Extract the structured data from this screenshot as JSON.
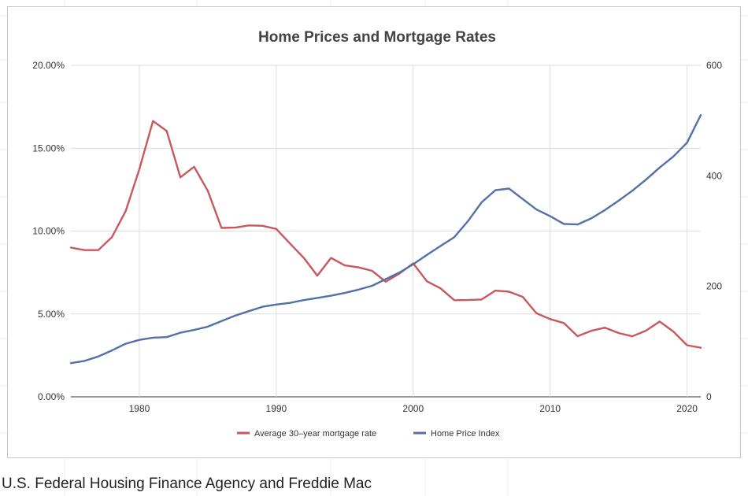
{
  "caption": "U.S. Federal Housing Finance Agency and Freddie Mac",
  "chart_data": {
    "type": "line",
    "title": "Home Prices and Mortgage Rates",
    "xlabel": "",
    "ylabel": "",
    "x_ticks": [
      "1980",
      "1990",
      "2000",
      "2010",
      "2020"
    ],
    "xlim": [
      1975,
      2021
    ],
    "y_left": {
      "ticks": [
        "0.00%",
        "5.00%",
        "10.00%",
        "15.00%",
        "20.00%"
      ],
      "ylim": [
        0,
        20
      ]
    },
    "y_right": {
      "ticks": [
        "0",
        "200",
        "400",
        "600"
      ],
      "ylim": [
        0,
        600
      ]
    },
    "grid": true,
    "legend_position": "bottom",
    "x": [
      1975,
      1976,
      1977,
      1978,
      1979,
      1980,
      1981,
      1982,
      1983,
      1984,
      1985,
      1986,
      1987,
      1988,
      1989,
      1990,
      1991,
      1992,
      1993,
      1994,
      1995,
      1996,
      1997,
      1998,
      1999,
      2000,
      2001,
      2002,
      2003,
      2004,
      2005,
      2006,
      2007,
      2008,
      2009,
      2010,
      2011,
      2012,
      2013,
      2014,
      2015,
      2016,
      2017,
      2018,
      2019,
      2020,
      2021
    ],
    "series": [
      {
        "name": "Average 30–year mortgage rate",
        "axis": "left",
        "color": "#c9575c",
        "values": [
          9.0,
          8.85,
          8.85,
          9.64,
          11.2,
          13.74,
          16.64,
          16.04,
          13.24,
          13.88,
          12.43,
          10.19,
          10.21,
          10.34,
          10.32,
          10.13,
          9.25,
          8.39,
          7.31,
          8.38,
          7.93,
          7.81,
          7.6,
          6.94,
          7.44,
          8.05,
          6.97,
          6.54,
          5.83,
          5.84,
          5.87,
          6.41,
          6.34,
          6.03,
          5.04,
          4.69,
          4.45,
          3.66,
          3.98,
          4.17,
          3.85,
          3.65,
          3.99,
          4.54,
          3.94,
          3.11,
          2.96
        ]
      },
      {
        "name": "Home Price Index",
        "axis": "right",
        "color": "#5470a8",
        "values": [
          61,
          65,
          73,
          84,
          96,
          103,
          107,
          108,
          116,
          121,
          127,
          137,
          147,
          155,
          163,
          167,
          170,
          175,
          179,
          183,
          188,
          194,
          201,
          213,
          225,
          240,
          257,
          273,
          289,
          318,
          352,
          374,
          377,
          358,
          339,
          327,
          313,
          312,
          323,
          338,
          355,
          373,
          393,
          415,
          435,
          460,
          510
        ]
      }
    ]
  }
}
